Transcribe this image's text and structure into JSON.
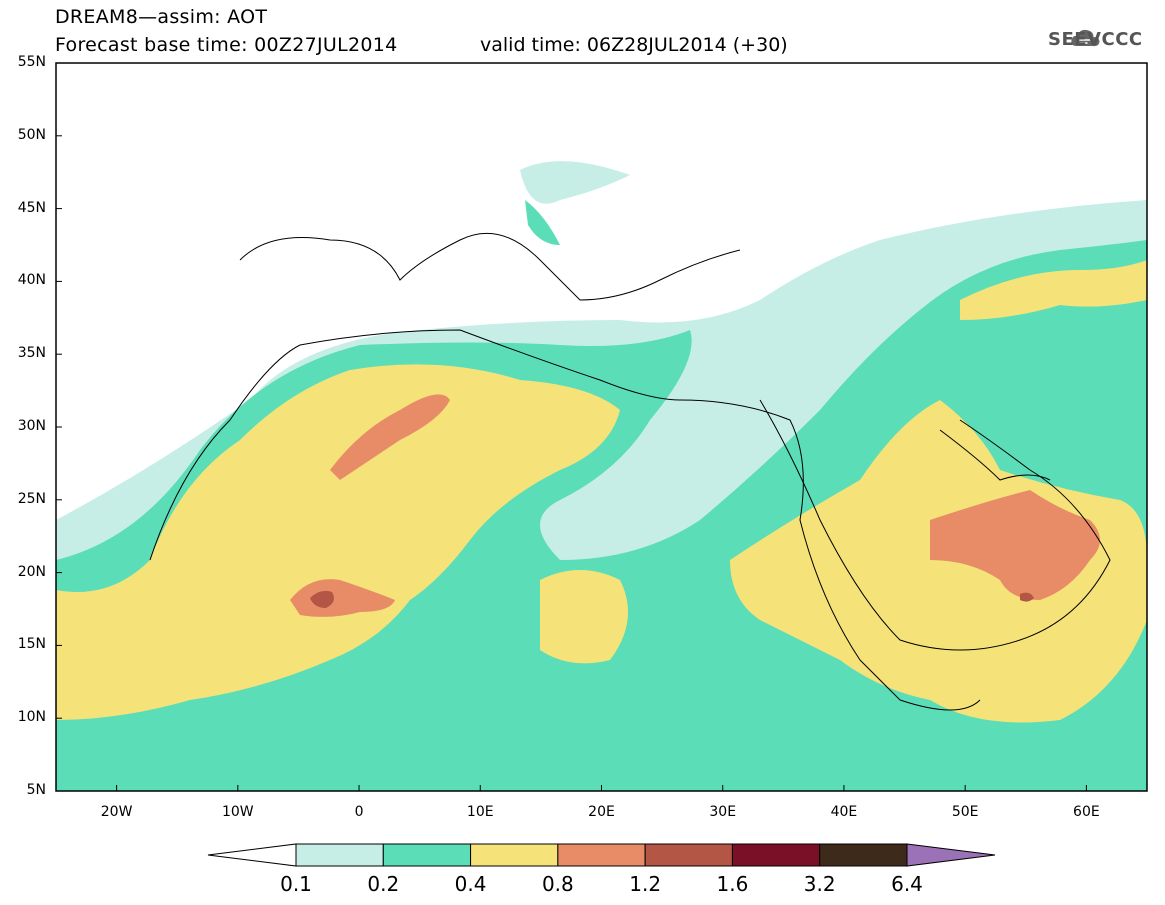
{
  "title": {
    "line1": "DREAM8—assim: AOT",
    "line2": "Forecast base time: 00Z27JUL2014",
    "valid": "valid time: 06Z28JUL2014 (+30)"
  },
  "logo": {
    "text": "SEEVCCC",
    "icon": "cloud-icon"
  },
  "map": {
    "lon_range": [
      -25,
      65
    ],
    "lat_range": [
      5,
      55
    ],
    "lat_ticks": [
      {
        "value": 55,
        "label": "55N"
      },
      {
        "value": 50,
        "label": "50N"
      },
      {
        "value": 45,
        "label": "45N"
      },
      {
        "value": 40,
        "label": "40N"
      },
      {
        "value": 35,
        "label": "35N"
      },
      {
        "value": 30,
        "label": "30N"
      },
      {
        "value": 25,
        "label": "25N"
      },
      {
        "value": 20,
        "label": "20N"
      },
      {
        "value": 15,
        "label": "15N"
      },
      {
        "value": 10,
        "label": "10N"
      },
      {
        "value": 5,
        "label": "5N"
      }
    ],
    "lon_ticks": [
      {
        "value": -20,
        "label": "20W"
      },
      {
        "value": -10,
        "label": "10W"
      },
      {
        "value": 0,
        "label": "0"
      },
      {
        "value": 10,
        "label": "10E"
      },
      {
        "value": 20,
        "label": "20E"
      },
      {
        "value": 30,
        "label": "30E"
      },
      {
        "value": 40,
        "label": "40E"
      },
      {
        "value": 50,
        "label": "50E"
      },
      {
        "value": 60,
        "label": "60E"
      }
    ]
  },
  "colorbar": {
    "labels": [
      "0.1",
      "0.2",
      "0.4",
      "0.8",
      "1.2",
      "1.6",
      "3.2",
      "6.4"
    ],
    "colors": [
      "#ffffff",
      "#c6eee6",
      "#5bddb7",
      "#f5e37a",
      "#e78c67",
      "#b35646",
      "#7a0f28",
      "#3d2a1b",
      "#9b72b7"
    ]
  }
}
